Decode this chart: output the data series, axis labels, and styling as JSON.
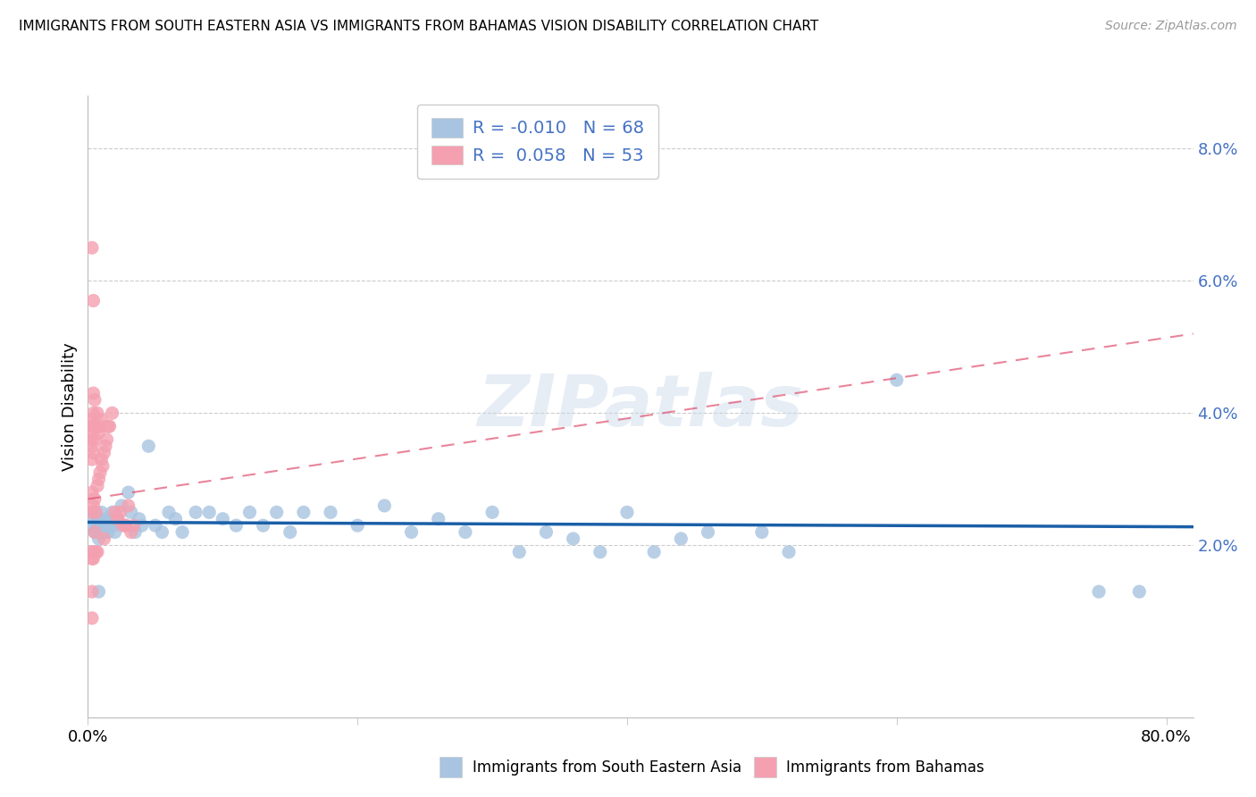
{
  "title": "IMMIGRANTS FROM SOUTH EASTERN ASIA VS IMMIGRANTS FROM BAHAMAS VISION DISABILITY CORRELATION CHART",
  "source": "Source: ZipAtlas.com",
  "ylabel": "Vision Disability",
  "xlim": [
    0.0,
    0.82
  ],
  "ylim": [
    -0.006,
    0.088
  ],
  "legend_label_blue": "Immigrants from South Eastern Asia",
  "legend_label_pink": "Immigrants from Bahamas",
  "R_blue": -0.01,
  "N_blue": 68,
  "R_pink": 0.058,
  "N_pink": 53,
  "color_blue": "#a8c4e0",
  "color_pink": "#f4a0b0",
  "trendline_blue_color": "#1a5fa8",
  "trendline_pink_color": "#e05070",
  "watermark": "ZIPatlas",
  "blue_trendline_y0": 0.0235,
  "blue_trendline_y1": 0.0228,
  "pink_trendline_y0": 0.027,
  "pink_trendline_y1": 0.052,
  "blue_x": [
    0.003,
    0.004,
    0.005,
    0.005,
    0.006,
    0.006,
    0.007,
    0.007,
    0.008,
    0.008,
    0.009,
    0.009,
    0.01,
    0.01,
    0.011,
    0.012,
    0.013,
    0.014,
    0.015,
    0.016,
    0.017,
    0.018,
    0.019,
    0.02,
    0.022,
    0.025,
    0.028,
    0.03,
    0.032,
    0.035,
    0.038,
    0.04,
    0.045,
    0.05,
    0.055,
    0.06,
    0.065,
    0.07,
    0.08,
    0.09,
    0.1,
    0.11,
    0.12,
    0.13,
    0.14,
    0.15,
    0.16,
    0.18,
    0.2,
    0.22,
    0.24,
    0.26,
    0.28,
    0.3,
    0.32,
    0.34,
    0.36,
    0.38,
    0.4,
    0.42,
    0.44,
    0.46,
    0.5,
    0.52,
    0.6,
    0.75,
    0.78,
    0.008
  ],
  "blue_y": [
    0.024,
    0.023,
    0.022,
    0.025,
    0.022,
    0.023,
    0.022,
    0.024,
    0.021,
    0.023,
    0.022,
    0.024,
    0.022,
    0.025,
    0.023,
    0.022,
    0.023,
    0.024,
    0.022,
    0.023,
    0.024,
    0.025,
    0.023,
    0.022,
    0.024,
    0.026,
    0.023,
    0.028,
    0.025,
    0.022,
    0.024,
    0.023,
    0.035,
    0.023,
    0.022,
    0.025,
    0.024,
    0.022,
    0.025,
    0.025,
    0.024,
    0.023,
    0.025,
    0.023,
    0.025,
    0.022,
    0.025,
    0.025,
    0.023,
    0.026,
    0.022,
    0.024,
    0.022,
    0.025,
    0.019,
    0.022,
    0.021,
    0.019,
    0.025,
    0.019,
    0.021,
    0.022,
    0.022,
    0.019,
    0.045,
    0.013,
    0.013,
    0.013
  ],
  "pink_x": [
    0.003,
    0.003,
    0.003,
    0.003,
    0.003,
    0.003,
    0.003,
    0.003,
    0.003,
    0.003,
    0.003,
    0.004,
    0.004,
    0.004,
    0.004,
    0.004,
    0.004,
    0.004,
    0.005,
    0.005,
    0.005,
    0.005,
    0.006,
    0.006,
    0.006,
    0.007,
    0.007,
    0.007,
    0.008,
    0.008,
    0.009,
    0.009,
    0.01,
    0.01,
    0.011,
    0.012,
    0.012,
    0.013,
    0.014,
    0.015,
    0.016,
    0.018,
    0.02,
    0.022,
    0.024,
    0.026,
    0.028,
    0.03,
    0.032,
    0.034,
    0.003,
    0.003,
    0.004
  ],
  "pink_y": [
    0.025,
    0.028,
    0.033,
    0.035,
    0.036,
    0.037,
    0.038,
    0.039,
    0.019,
    0.018,
    0.013,
    0.026,
    0.034,
    0.038,
    0.04,
    0.043,
    0.019,
    0.018,
    0.027,
    0.036,
    0.042,
    0.022,
    0.025,
    0.038,
    0.019,
    0.029,
    0.04,
    0.019,
    0.03,
    0.037,
    0.031,
    0.038,
    0.033,
    0.039,
    0.032,
    0.034,
    0.021,
    0.035,
    0.036,
    0.038,
    0.038,
    0.04,
    0.025,
    0.024,
    0.025,
    0.023,
    0.023,
    0.026,
    0.022,
    0.023,
    0.065,
    0.009,
    0.057
  ],
  "ytick_vals": [
    0.02,
    0.04,
    0.06,
    0.08
  ],
  "ytick_labels": [
    "2.0%",
    "4.0%",
    "6.0%",
    "8.0%"
  ],
  "xtick_vals": [
    0.0,
    0.2,
    0.4,
    0.6,
    0.8
  ],
  "xtick_labels": [
    "0.0%",
    "",
    "",
    "",
    "80.0%"
  ]
}
